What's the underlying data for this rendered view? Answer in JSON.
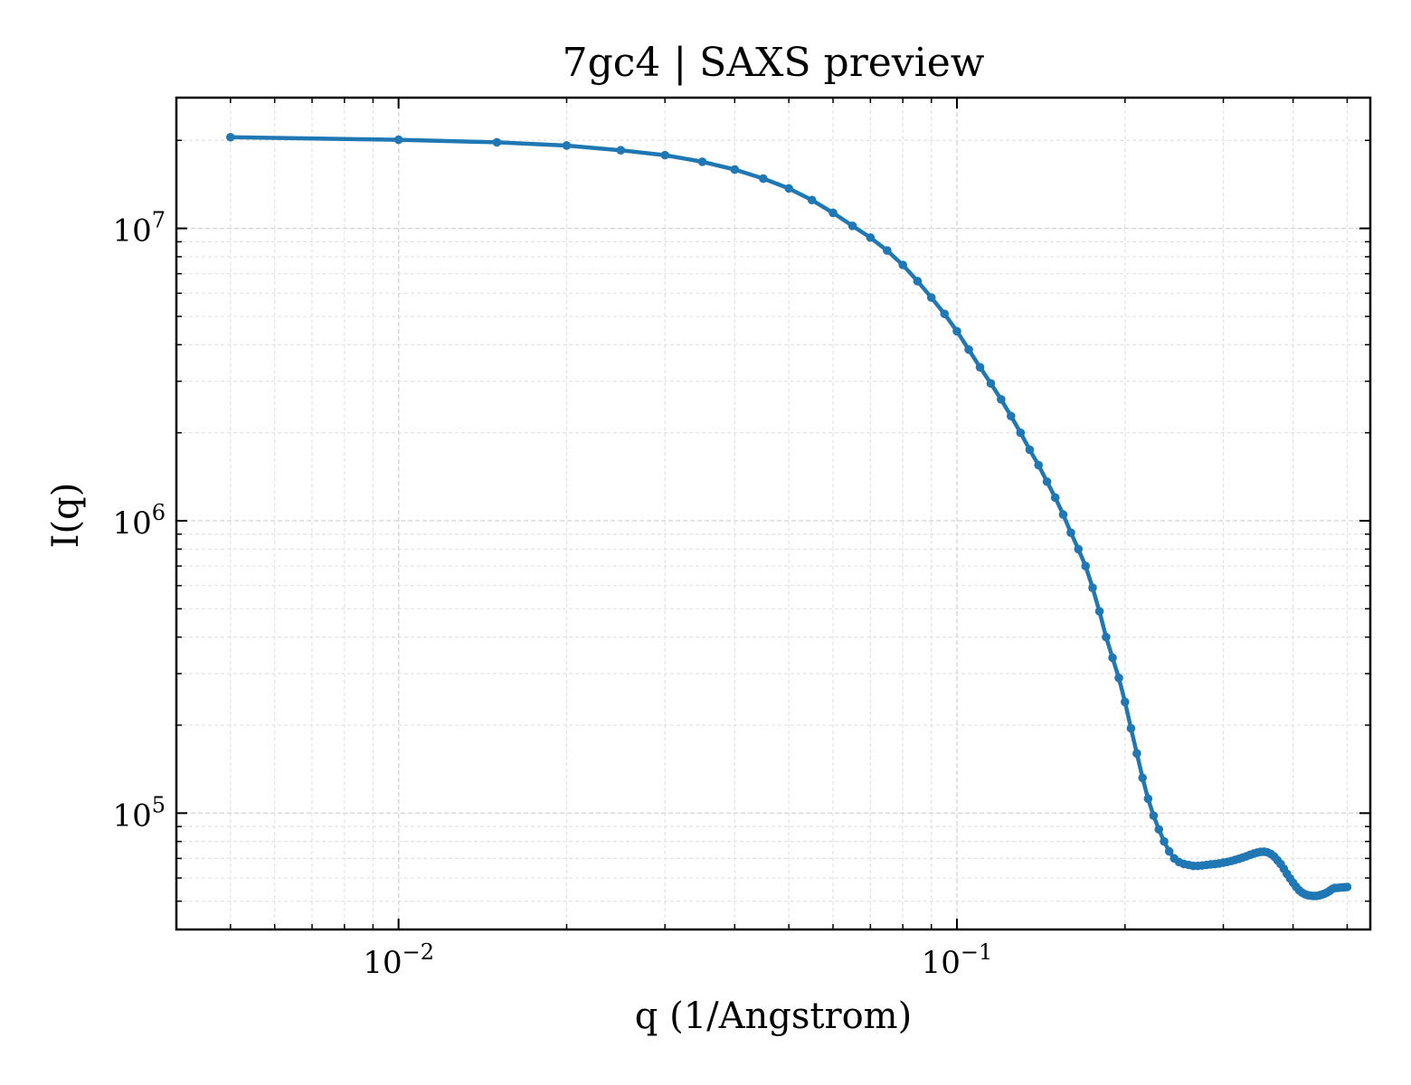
{
  "chart_data": {
    "type": "line",
    "title": "7gc4 | SAXS preview",
    "xlabel": "q (1/Angstrom)",
    "ylabel": "I(q)",
    "xscale": "log",
    "yscale": "log",
    "xlim": [
      0.004,
      0.55
    ],
    "ylim": [
      40000,
      28000000
    ],
    "grid": true,
    "x_ticks": [
      {
        "value": 0.01,
        "base": "10",
        "exp": "−2"
      },
      {
        "value": 0.1,
        "base": "10",
        "exp": "−1"
      }
    ],
    "y_ticks": [
      {
        "value": 100000,
        "base": "10",
        "exp": "5"
      },
      {
        "value": 1000000,
        "base": "10",
        "exp": "6"
      },
      {
        "value": 10000000,
        "base": "10",
        "exp": "7"
      }
    ],
    "line_color": "#1f77b4",
    "series": [
      {
        "x": [
          0.005,
          0.01,
          0.015,
          0.02,
          0.025,
          0.03,
          0.035,
          0.04,
          0.045,
          0.05,
          0.055,
          0.06,
          0.065,
          0.07,
          0.075,
          0.08,
          0.085,
          0.09,
          0.095,
          0.1,
          0.105,
          0.11,
          0.115,
          0.12,
          0.125,
          0.13,
          0.135,
          0.14,
          0.145,
          0.15,
          0.155,
          0.16,
          0.165,
          0.17,
          0.175,
          0.18,
          0.185,
          0.19,
          0.195,
          0.2,
          0.205,
          0.21,
          0.215,
          0.22,
          0.225,
          0.23,
          0.235,
          0.24,
          0.245,
          0.25,
          0.255,
          0.26,
          0.265,
          0.27,
          0.275,
          0.28,
          0.285,
          0.29,
          0.295,
          0.3,
          0.305,
          0.31,
          0.315,
          0.32,
          0.325,
          0.33,
          0.335,
          0.34,
          0.345,
          0.35,
          0.355,
          0.36,
          0.365,
          0.37,
          0.375,
          0.38,
          0.385,
          0.39,
          0.395,
          0.4,
          0.405,
          0.41,
          0.415,
          0.42,
          0.425,
          0.43,
          0.435,
          0.44,
          0.445,
          0.45,
          0.455,
          0.46,
          0.465,
          0.47,
          0.475,
          0.48,
          0.485,
          0.49,
          0.495,
          0.5
        ],
        "y": [
          20500000,
          20100000,
          19700000,
          19200000,
          18500000,
          17800000,
          16900000,
          15900000,
          14800000,
          13700000,
          12500000,
          11300000,
          10200000,
          9300000,
          8400000,
          7500000,
          6600000,
          5800000,
          5100000,
          4450000,
          3850000,
          3350000,
          2950000,
          2600000,
          2280000,
          2000000,
          1750000,
          1550000,
          1360000,
          1200000,
          1050000,
          910000,
          800000,
          700000,
          590000,
          490000,
          400000,
          340000,
          290000,
          240000,
          195000,
          160000,
          132000,
          112000,
          98000,
          88000,
          80000,
          74000,
          70000,
          68000,
          67000,
          66500,
          66000,
          66000,
          66200,
          66500,
          66800,
          67000,
          67300,
          67700,
          68100,
          68600,
          69200,
          69800,
          70500,
          71200,
          72000,
          72700,
          73300,
          73700,
          73800,
          73400,
          72500,
          71000,
          69000,
          67000,
          64500,
          62000,
          59800,
          57800,
          56000,
          54500,
          53500,
          52800,
          52400,
          52200,
          52100,
          52100,
          52300,
          52600,
          53000,
          53500,
          54200,
          55000,
          55500,
          55500,
          55600,
          55700,
          55800,
          55900
        ]
      }
    ]
  }
}
